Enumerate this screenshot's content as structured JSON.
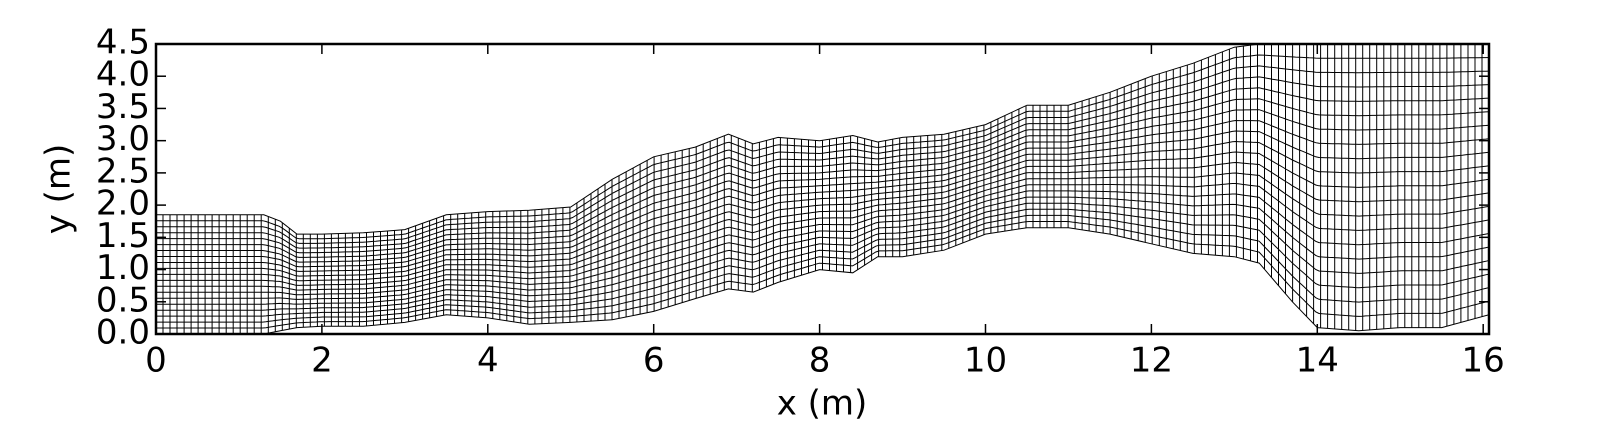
{
  "chart_data": {
    "type": "mesh",
    "xlabel": "x (m)",
    "ylabel": "y (m)",
    "x": [
      0,
      0.5,
      1.3,
      1.5,
      1.7,
      2.0,
      2.5,
      3.0,
      3.5,
      4.0,
      4.5,
      5.0,
      5.5,
      6.0,
      6.5,
      6.9,
      7.2,
      7.5,
      8.0,
      8.4,
      8.7,
      9.0,
      9.5,
      10.0,
      10.5,
      11.0,
      11.5,
      12.0,
      12.5,
      13.0,
      13.3,
      13.7,
      14.0,
      14.5,
      15.0,
      15.5,
      16.07
    ],
    "lower": [
      0.0,
      0.0,
      0.0,
      0.05,
      0.1,
      0.12,
      0.12,
      0.18,
      0.3,
      0.25,
      0.15,
      0.18,
      0.22,
      0.35,
      0.55,
      0.7,
      0.65,
      0.8,
      1.0,
      0.95,
      1.2,
      1.2,
      1.3,
      1.55,
      1.65,
      1.65,
      1.55,
      1.4,
      1.25,
      1.2,
      1.1,
      0.5,
      0.1,
      0.05,
      0.1,
      0.1,
      0.3
    ],
    "upper": [
      1.85,
      1.85,
      1.85,
      1.75,
      1.55,
      1.55,
      1.57,
      1.62,
      1.85,
      1.9,
      1.92,
      1.97,
      2.4,
      2.75,
      2.9,
      3.1,
      2.95,
      3.05,
      3.0,
      3.08,
      2.98,
      3.05,
      3.1,
      3.25,
      3.55,
      3.55,
      3.75,
      4.0,
      4.2,
      4.45,
      4.5,
      4.5,
      4.5,
      4.5,
      4.5,
      4.5,
      4.5
    ],
    "mesh_rows": 20,
    "mesh_columns": 190,
    "xlim": [
      0,
      16.07
    ],
    "ylim": [
      0,
      4.5
    ],
    "xticks": [
      0,
      2,
      4,
      6,
      8,
      10,
      12,
      14,
      16
    ],
    "yticks": [
      {
        "value": 0,
        "label": "0.0"
      },
      {
        "value": 0.5,
        "label": "0.5"
      },
      {
        "value": 1,
        "label": "1.0"
      },
      {
        "value": 1.5,
        "label": "1.5"
      },
      {
        "value": 2,
        "label": "2.0"
      },
      {
        "value": 2.5,
        "label": "2.5"
      },
      {
        "value": 3,
        "label": "3.0"
      },
      {
        "value": 3.5,
        "label": "3.5"
      },
      {
        "value": 4,
        "label": "4.0"
      },
      {
        "value": 4.5,
        "label": "4.5"
      }
    ],
    "color": "#000000"
  }
}
